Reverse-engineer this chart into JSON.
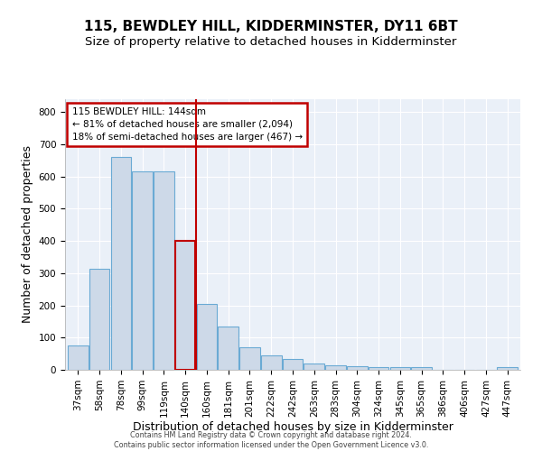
{
  "title": "115, BEWDLEY HILL, KIDDERMINSTER, DY11 6BT",
  "subtitle": "Size of property relative to detached houses in Kidderminster",
  "xlabel": "Distribution of detached houses by size in Kidderminster",
  "ylabel": "Number of detached properties",
  "bar_labels": [
    "37sqm",
    "58sqm",
    "78sqm",
    "99sqm",
    "119sqm",
    "140sqm",
    "160sqm",
    "181sqm",
    "201sqm",
    "222sqm",
    "242sqm",
    "263sqm",
    "283sqm",
    "304sqm",
    "324sqm",
    "345sqm",
    "365sqm",
    "386sqm",
    "406sqm",
    "427sqm",
    "447sqm"
  ],
  "bar_values": [
    75,
    315,
    660,
    615,
    615,
    400,
    205,
    135,
    70,
    45,
    35,
    20,
    15,
    10,
    8,
    8,
    8,
    0,
    0,
    0,
    8
  ],
  "bar_color": "#cdd9e8",
  "bar_edge_color": "#6aaad4",
  "highlight_bar_index": 5,
  "highlight_bar_edge_color": "#c00000",
  "vline_color": "#c00000",
  "annotation_text": "115 BEWDLEY HILL: 144sqm\n← 81% of detached houses are smaller (2,094)\n18% of semi-detached houses are larger (467) →",
  "annotation_box_color": "#ffffff",
  "annotation_box_edge_color": "#c00000",
  "ylim": [
    0,
    840
  ],
  "yticks": [
    0,
    100,
    200,
    300,
    400,
    500,
    600,
    700,
    800
  ],
  "footer_line1": "Contains HM Land Registry data © Crown copyright and database right 2024.",
  "footer_line2": "Contains public sector information licensed under the Open Government Licence v3.0.",
  "bg_color": "#eaf0f8",
  "title_fontsize": 11,
  "subtitle_fontsize": 9.5,
  "axis_label_fontsize": 9,
  "tick_fontsize": 7.5
}
